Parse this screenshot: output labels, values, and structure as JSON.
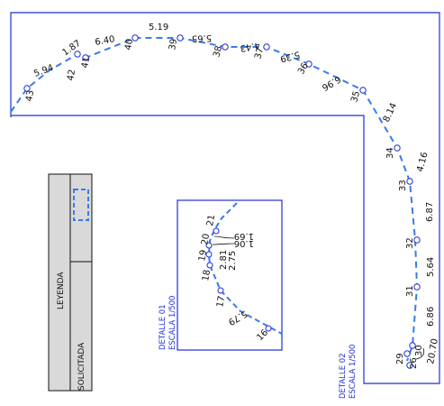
{
  "colors": {
    "outline": "#1f2fd6",
    "dash": "#3b7be8",
    "point_fill": "#ffffff",
    "legend_header": "#d9d9d9",
    "text": "#111111"
  },
  "main_points": [
    {
      "id": "26",
      "distance": ""
    },
    {
      "id": "29",
      "distance": ""
    },
    {
      "id": "30",
      "distance": ""
    },
    {
      "id": "31",
      "distance": "6.86"
    },
    {
      "id": "32",
      "distance": "5.64"
    },
    {
      "id": "33",
      "distance": "6.87"
    },
    {
      "id": "34",
      "distance": "4.16"
    },
    {
      "id": "35",
      "distance": "8.14"
    },
    {
      "id": "36",
      "distance": "6.96"
    },
    {
      "id": "37",
      "distance": "5.39"
    },
    {
      "id": "38",
      "distance": "4.43"
    },
    {
      "id": "39",
      "distance": "5.65"
    },
    {
      "id": "40",
      "distance": "5.19"
    },
    {
      "id": "41",
      "distance": "6.40"
    },
    {
      "id": "42",
      "distance": "1.87"
    },
    {
      "id": "43",
      "distance": "5.94"
    }
  ],
  "end_distances": [
    "20.70"
  ],
  "detail_points": [
    {
      "id": "16",
      "distance": ""
    },
    {
      "id": "17",
      "distance": "5.79"
    },
    {
      "id": "18",
      "distance": "2.81"
    },
    {
      "id": "19",
      "distance": "2.75"
    },
    {
      "id": "20",
      "distance": ""
    },
    {
      "id": "21",
      "distance": ""
    }
  ],
  "detail_callouts": [
    "1.69",
    "1.06"
  ],
  "detail_01": {
    "title": "DETALLE 01",
    "scale": "ESCALA 1/500"
  },
  "detail_02": {
    "title": "DETALLE 02",
    "scale": "ESCALA 1/500"
  },
  "legend": {
    "title": "LEYENDA",
    "item": "SOLICITADA"
  }
}
